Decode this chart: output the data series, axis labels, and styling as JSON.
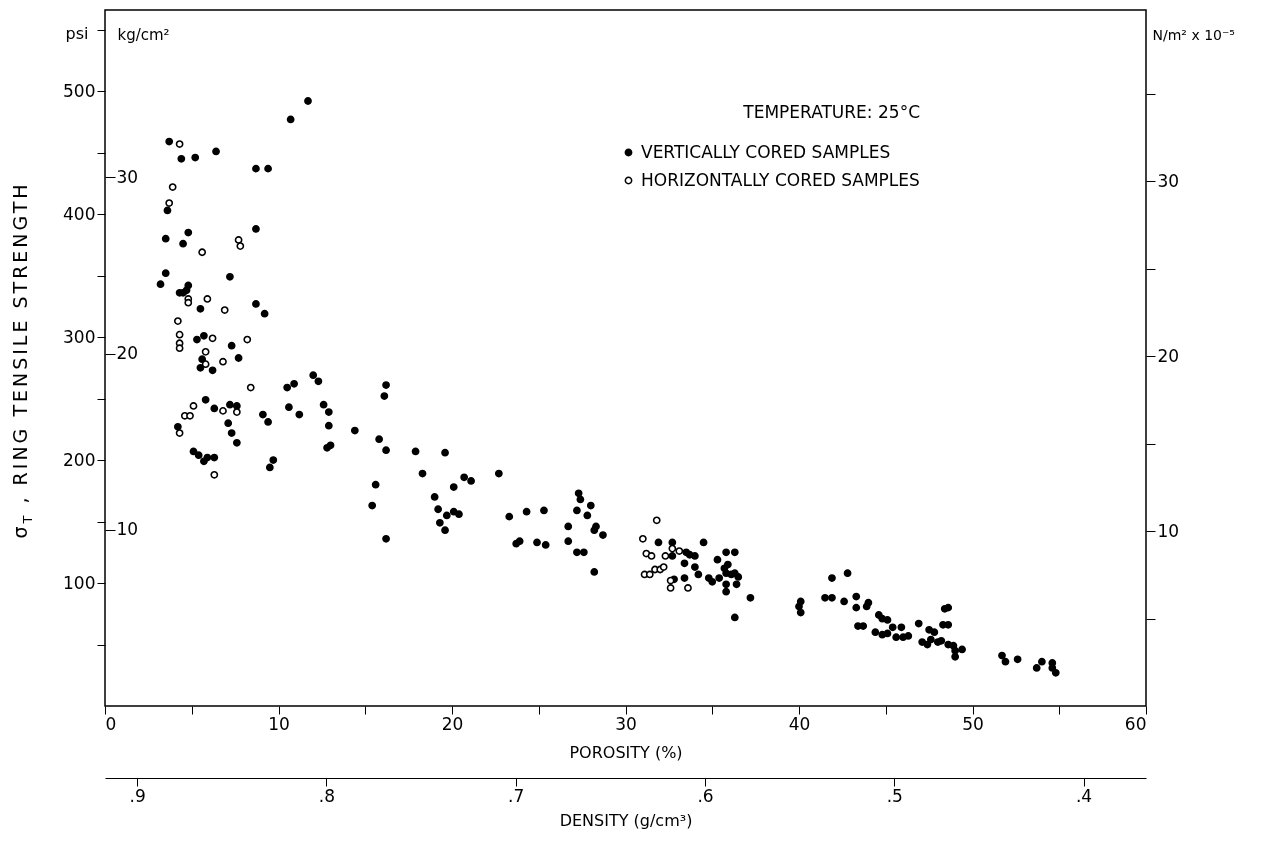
{
  "chart_data": {
    "type": "scatter",
    "xlabel": "POROSITY (%)",
    "ylabel": "σ$_{T}$ , RING TENSILE STRENGTH",
    "y2label": "N/m² x 10⁻⁵",
    "y3label": "kg/cm²",
    "x2label": "DENSITY (g/cm³)",
    "legend_title": "TEMPERATURE: 25°C",
    "legend": "top right",
    "marker": "circle",
    "grid": false,
    "annotations": [
      "psi"
    ],
    "xlim": [
      0,
      60
    ],
    "xticks": [
      0,
      {
        "value": 5,
        "label": null
      },
      10,
      {
        "value": 15,
        "label": null
      },
      20,
      {
        "value": 25,
        "label": null
      },
      30,
      {
        "value": 35,
        "label": null
      },
      40,
      {
        "value": 45,
        "label": null
      },
      50,
      {
        "value": 55,
        "label": null
      },
      60
    ],
    "ylim": [
      0,
      566
    ],
    "yticks": [
      {
        "value": 50,
        "label": null
      },
      100,
      {
        "value": 150,
        "label": null
      },
      200,
      {
        "value": 250,
        "label": null
      },
      300,
      {
        "value": 350,
        "label": null
      },
      400,
      {
        "value": 450,
        "label": null
      },
      500,
      {
        "value": 550,
        "label": null
      }
    ],
    "y2lim": [
      0,
      39.8
    ],
    "y2ticks": [
      {
        "value": 5,
        "label": null
      },
      10,
      {
        "value": 15,
        "label": null
      },
      20,
      {
        "value": 25,
        "label": null
      },
      30,
      {
        "value": 35,
        "label": null
      }
    ],
    "y3lim": [
      0,
      39.5
    ],
    "y3ticks": [
      10,
      20,
      30
    ],
    "x2lim": [
      0.917,
      0.367
    ],
    "x2ticks": [
      {
        "value": 0.9,
        "label": ".9"
      },
      {
        "value": 0.8,
        "label": ".8"
      },
      {
        "value": 0.7,
        "label": ".7"
      },
      {
        "value": 0.6,
        "label": ".6"
      },
      {
        "value": 0.5,
        "label": ".5"
      },
      {
        "value": 0.4,
        "label": ".4"
      }
    ],
    "series": [
      {
        "name": "VERTICALLY CORED SAMPLES",
        "color": "#000000",
        "x": [
          3.7,
          4.4,
          5.2,
          6.4,
          10.7,
          11.7,
          8.7,
          9.4,
          3.6,
          3.5,
          4.5,
          4.8,
          8.7,
          3.5,
          3.2,
          7.2,
          4.5,
          4.3,
          4.7,
          4.8,
          5.5,
          8.7,
          9.2,
          5.3,
          5.7,
          7.3,
          7.7,
          5.5,
          5.6,
          6.2,
          5.8,
          6.3,
          7.2,
          7.6,
          7.1,
          7.3,
          7.6,
          4.2,
          5.1,
          5.4,
          5.7,
          5.9,
          6.3,
          9.1,
          9.4,
          9.5,
          9.7,
          10.5,
          10.9,
          10.6,
          11.2,
          12.0,
          12.3,
          12.6,
          12.9,
          12.9,
          12.8,
          13.0,
          14.4,
          15.8,
          16.2,
          15.6,
          16.1,
          16.2,
          17.9,
          18.3,
          19.6,
          19.0,
          19.2,
          19.3,
          19.6,
          19.7,
          20.1,
          20.4,
          20.1,
          20.7,
          21.1,
          22.7,
          23.3,
          23.7,
          23.9,
          24.3,
          24.9,
          25.3,
          25.4,
          26.7,
          26.7,
          27.3,
          27.4,
          27.2,
          27.2,
          27.6,
          27.8,
          28.0,
          28.2,
          28.3,
          28.7,
          28.2,
          15.4,
          16.2,
          31.9,
          32.7,
          32.7,
          33.5,
          33.7,
          34.0,
          33.4,
          34.0,
          34.2,
          32.8,
          33.4,
          34.5,
          35.3,
          35.8,
          36.3,
          34.8,
          35.0,
          35.4,
          35.7,
          35.8,
          36.1,
          36.3,
          36.5,
          35.8,
          36.4,
          35.8,
          36.3,
          37.2,
          35.9,
          40.1,
          40.0,
          40.1,
          41.9,
          42.8,
          41.5,
          41.9,
          42.6,
          43.3,
          43.3,
          43.9,
          44.0,
          43.4,
          43.7,
          44.6,
          44.8,
          45.1,
          44.4,
          44.8,
          45.1,
          45.4,
          45.6,
          45.9,
          46.0,
          46.3,
          46.9,
          47.5,
          47.8,
          47.1,
          47.4,
          47.6,
          48.0,
          48.2,
          48.4,
          48.6,
          48.3,
          48.6,
          48.6,
          48.9,
          49.0,
          49.0,
          49.4,
          51.7,
          51.9,
          52.6,
          53.7,
          54.0,
          54.6,
          54.6,
          54.8
        ],
        "values": [
          459,
          445,
          446,
          451,
          477,
          492,
          437,
          437,
          403,
          380,
          376,
          385,
          388,
          352,
          343,
          349,
          336,
          336,
          338,
          342,
          323,
          327,
          319,
          298,
          301,
          293,
          283,
          275,
          282,
          273,
          249,
          242,
          245,
          244,
          230,
          222,
          214,
          227,
          207,
          204,
          199,
          202,
          202,
          237,
          231,
          194,
          200,
          259,
          262,
          243,
          237,
          269,
          264,
          245,
          239,
          228,
          210,
          212,
          224,
          217,
          208,
          180,
          252,
          261,
          207,
          189,
          206,
          170,
          160,
          149,
          143,
          155,
          158,
          156,
          178,
          186,
          183,
          189,
          154,
          132,
          134,
          158,
          133,
          159,
          131,
          146,
          134,
          173,
          168,
          159,
          125,
          125,
          155,
          163,
          143,
          146,
          139,
          109,
          163,
          136,
          133,
          133,
          122,
          125,
          123,
          122,
          116,
          113,
          107,
          103,
          104,
          133,
          119,
          125,
          125,
          104,
          101,
          104,
          112,
          108,
          107,
          108,
          105,
          99,
          99,
          93,
          72,
          88,
          115,
          85,
          81,
          76,
          104,
          108,
          88,
          88,
          85,
          89,
          80,
          81,
          84,
          65,
          65,
          74,
          71,
          70,
          60,
          58,
          59,
          64,
          56,
          64,
          56,
          57,
          67,
          62,
          60,
          52,
          50,
          54,
          52,
          53,
          79,
          80,
          66,
          66,
          50,
          49,
          45,
          40,
          46,
          41,
          36,
          38,
          31,
          36,
          35,
          31,
          27
        ]
      },
      {
        "name": "HORIZONTALLY CORED SAMPLES",
        "color": "#000000",
        "x": [
          4.3,
          3.9,
          3.7,
          5.6,
          7.7,
          7.8,
          4.8,
          4.8,
          5.9,
          6.9,
          4.2,
          4.3,
          4.3,
          4.3,
          6.2,
          5.8,
          5.8,
          6.8,
          8.2,
          8.4,
          5.1,
          4.6,
          4.9,
          4.3,
          6.8,
          7.6,
          6.3,
          31.8,
          31.0,
          31.2,
          31.5,
          32.3,
          32.7,
          33.1,
          31.1,
          31.4,
          31.7,
          32.0,
          32.2,
          32.6,
          32.6,
          33.6
        ],
        "values": [
          457,
          422,
          409,
          369,
          379,
          374,
          331,
          328,
          331,
          322,
          313,
          302,
          295,
          291,
          299,
          288,
          278,
          280,
          298,
          259,
          244,
          236,
          236,
          222,
          240,
          239,
          188,
          151,
          136,
          124,
          122,
          122,
          128,
          126,
          107,
          107,
          111,
          111,
          113,
          102,
          96,
          96
        ]
      }
    ]
  }
}
